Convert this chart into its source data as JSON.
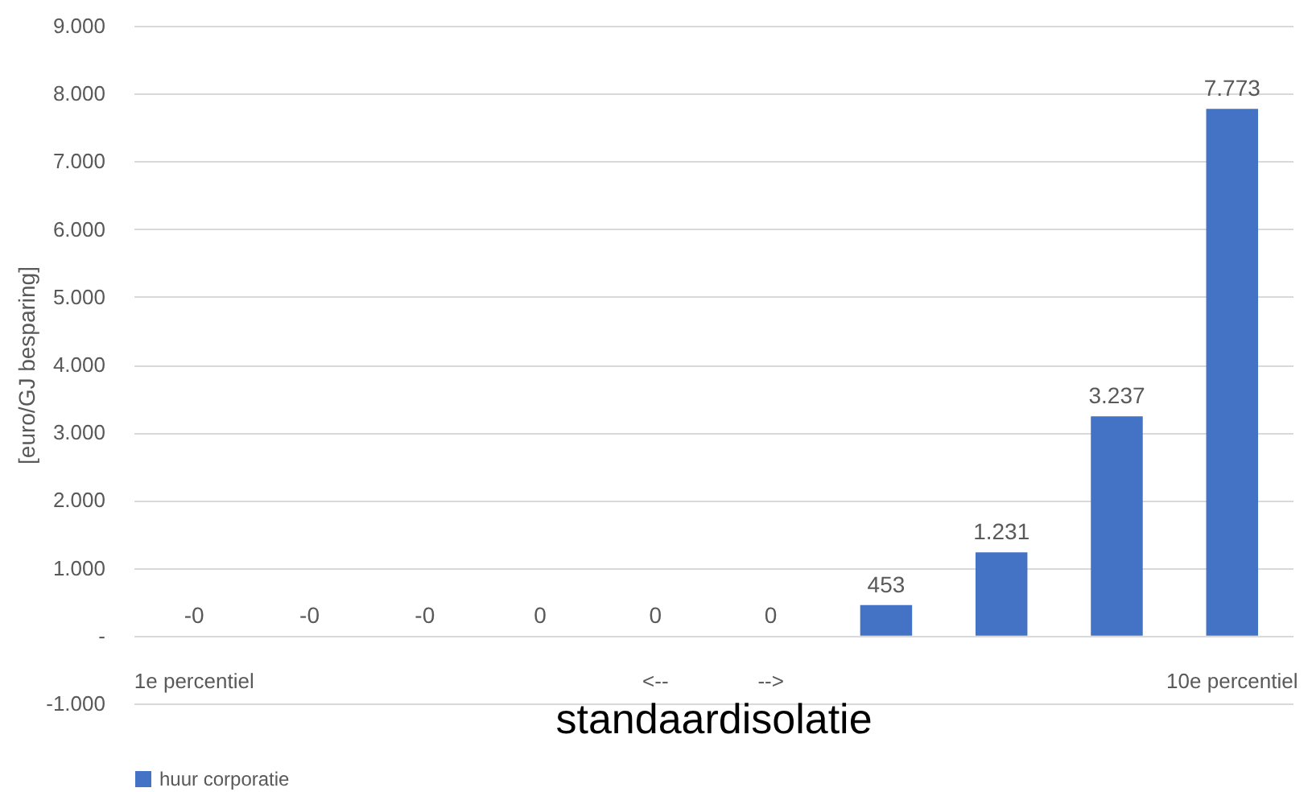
{
  "chart_data": {
    "type": "bar",
    "xlabel": "standaardisolatie",
    "ylabel": "[euro/GJ besparing]",
    "categories": [
      "1e percentiel",
      null,
      null,
      null,
      "<--",
      "-->",
      null,
      null,
      null,
      "10e percentiel"
    ],
    "series": [
      {
        "name": "huur corporatie",
        "color": "#4472c4",
        "values": [
          0,
          0,
          0,
          0,
          0,
          0,
          453,
          1231,
          3237,
          7773
        ],
        "value_labels": [
          "-0",
          "-0",
          "-0",
          "0",
          "0",
          "0",
          "453",
          "1.231",
          "3.237",
          "7.773"
        ]
      }
    ],
    "ylim": [
      -1000,
      9000
    ],
    "yticks": [
      {
        "value": -1000,
        "label": "-1.000"
      },
      {
        "value": 0,
        "label": "-"
      },
      {
        "value": 1000,
        "label": "1.000"
      },
      {
        "value": 2000,
        "label": "2.000"
      },
      {
        "value": 3000,
        "label": "3.000"
      },
      {
        "value": 4000,
        "label": "4.000"
      },
      {
        "value": 5000,
        "label": "5.000"
      },
      {
        "value": 6000,
        "label": "6.000"
      },
      {
        "value": 7000,
        "label": "7.000"
      },
      {
        "value": 8000,
        "label": "8.000"
      },
      {
        "value": 9000,
        "label": "9.000"
      }
    ],
    "grid": "y",
    "legend": "bottom"
  }
}
